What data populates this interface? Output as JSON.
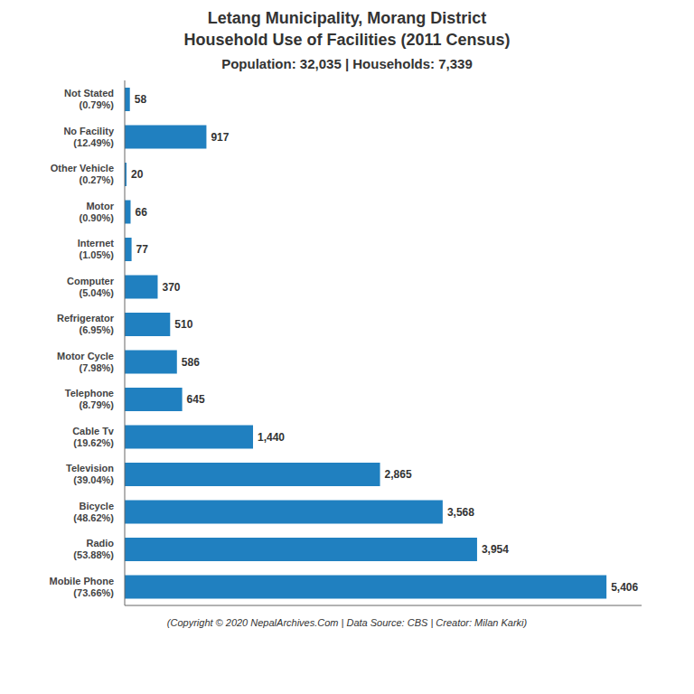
{
  "chart_data": {
    "type": "bar",
    "orientation": "horizontal",
    "title": "Letang Municipality, Morang District\nHousehold Use of Facilities (2011 Census)",
    "subtitle": "Population: 32,035 | Households: 7,339",
    "annotations": [
      "(Copyright © 2020 NepalArchives.Com | Data Source: CBS | Creator: Milan Karki)"
    ],
    "categories": [
      "Not Stated\n(0.79%)",
      "No Facility\n(12.49%)",
      "Other Vehicle\n(0.27%)",
      "Motor\n(0.90%)",
      "Internet\n(1.05%)",
      "Computer\n(5.04%)",
      "Refrigerator\n(6.95%)",
      "Motor Cycle\n(7.98%)",
      "Telephone\n(8.79%)",
      "Cable Tv\n(19.62%)",
      "Television\n(39.04%)",
      "Bicycle\n(48.62%)",
      "Radio\n(53.88%)",
      "Mobile Phone\n(73.66%)"
    ],
    "values": [
      58,
      917,
      20,
      66,
      77,
      370,
      510,
      586,
      645,
      1440,
      2865,
      3568,
      3954,
      5406
    ],
    "value_labels": [
      "58",
      "917",
      "20",
      "66",
      "77",
      "370",
      "510",
      "586",
      "645",
      "1,440",
      "2,865",
      "3,568",
      "3,954",
      "5,406"
    ],
    "data_labels": true,
    "color": "#2080c0",
    "xlim": [
      0,
      5800
    ],
    "tick_labels": "y",
    "grid": false
  }
}
